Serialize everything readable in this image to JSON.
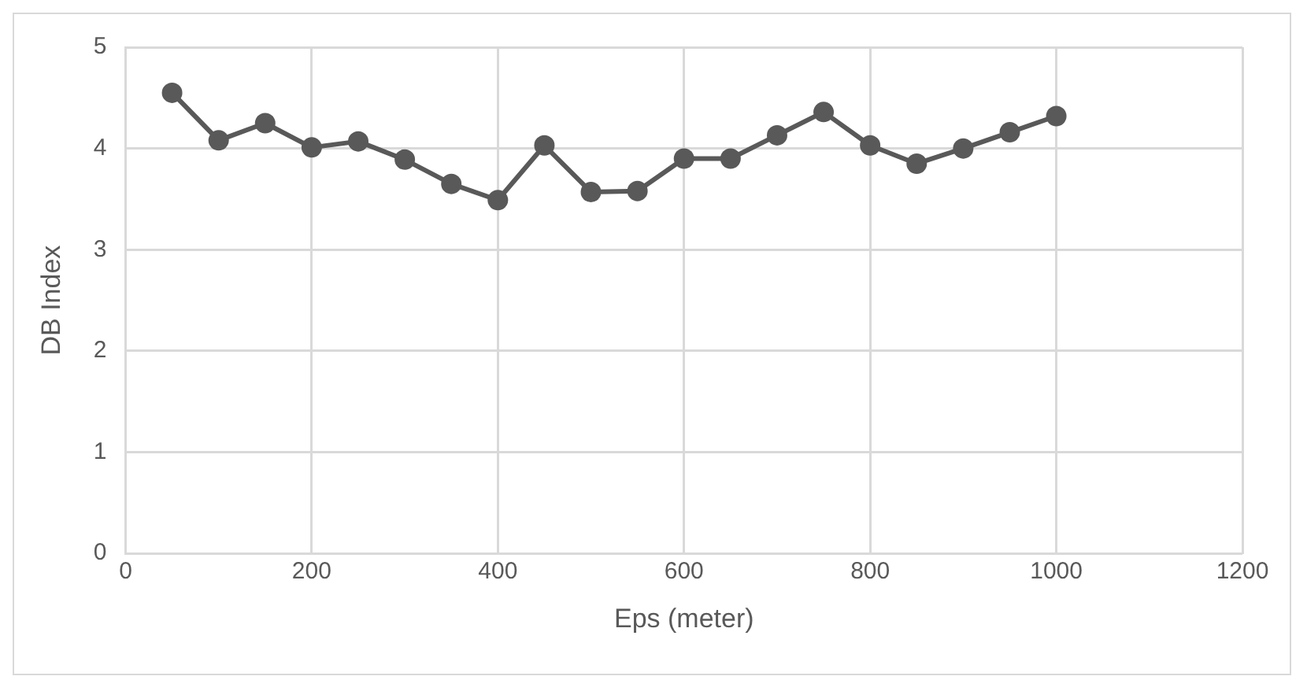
{
  "chart_data": {
    "type": "line",
    "xlabel": "Eps (meter)",
    "ylabel": "DB Index",
    "x": [
      50,
      100,
      150,
      200,
      250,
      300,
      350,
      400,
      450,
      500,
      550,
      600,
      650,
      700,
      750,
      800,
      850,
      900,
      950,
      1000
    ],
    "series": [
      {
        "color": "#595959",
        "values": [
          4.55,
          4.08,
          4.25,
          4.01,
          4.07,
          3.89,
          3.65,
          3.49,
          4.03,
          3.57,
          3.58,
          3.9,
          3.9,
          4.13,
          4.36,
          4.03,
          3.85,
          4.0,
          4.16,
          4.32
        ]
      }
    ],
    "xlim": [
      0,
      1200
    ],
    "xticks": [
      0,
      200,
      400,
      600,
      800,
      1000,
      1200
    ],
    "ylim": [
      0,
      5
    ],
    "yticks": [
      0,
      1,
      2,
      3,
      4,
      5
    ],
    "grid": true,
    "marker": "circle",
    "line_style": "solid",
    "legend": false
  }
}
